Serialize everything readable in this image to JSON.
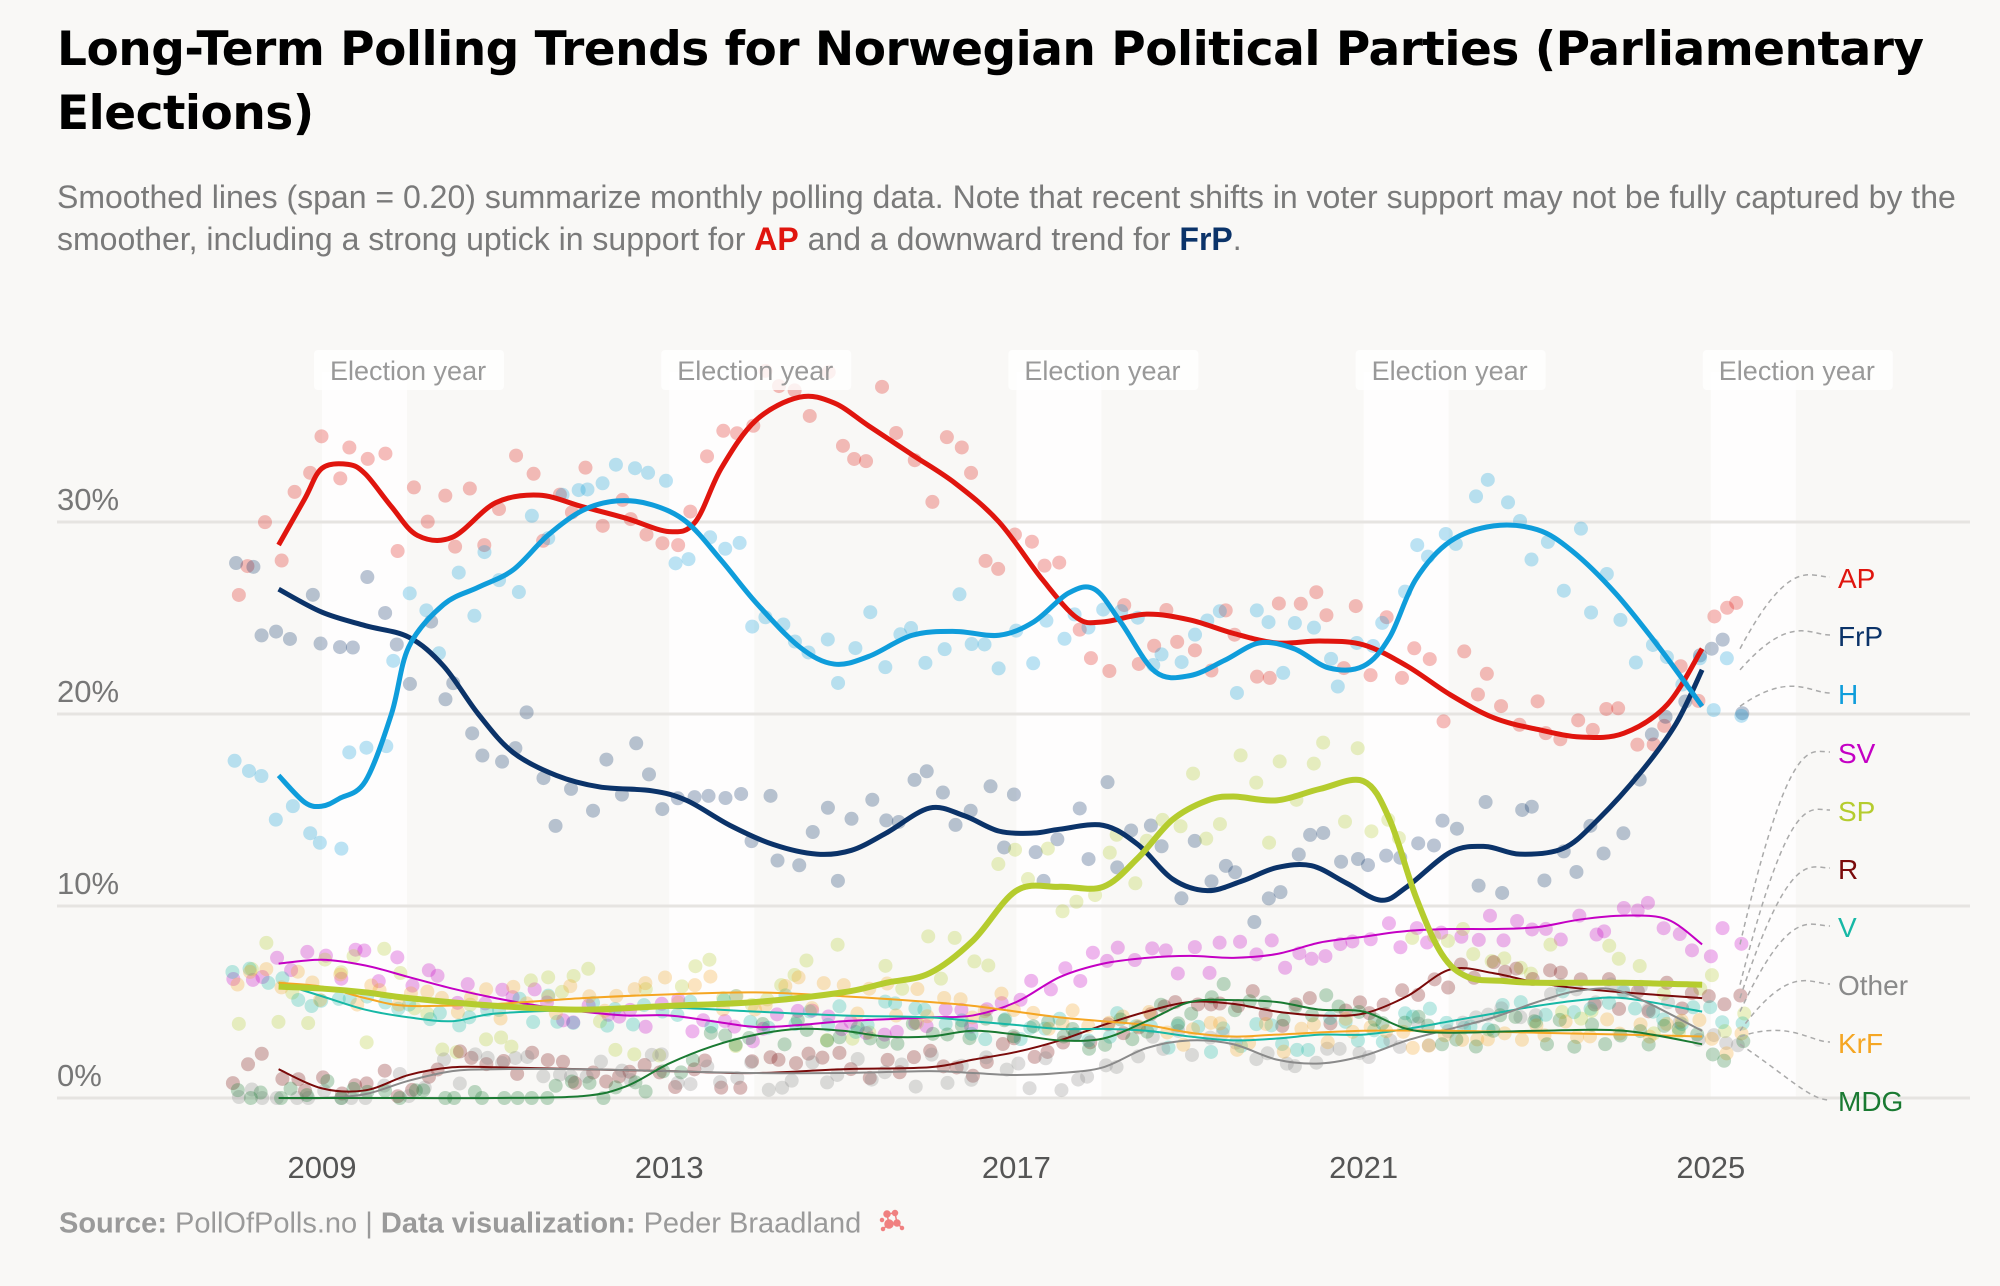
{
  "title": "Long-Term Polling Trends for Norwegian Political Parties (Parliamentary Elections)",
  "subtitle": {
    "part1": "Smoothed lines (span = 0.20) summarize monthly polling data. Note that recent shifts in voter support may not be fully captured by the smoother, including a strong uptick in support for ",
    "ap": "AP",
    "part2": " and a downward trend for ",
    "frp": "FrP",
    "part3": "."
  },
  "caption": {
    "source_label": "Source:",
    "source_value": "PollOfPolls.no",
    "separator": "|",
    "viz_label": "Data visualization:",
    "viz_value": "Peder Braadland",
    "logo_icon": "network-logo-icon"
  },
  "chart_data": {
    "type": "line",
    "title": "Long-Term Polling Trends for Norwegian Political Parties (Parliamentary Elections)",
    "xlabel": "",
    "ylabel": "",
    "xlim": [
      2007.8,
      2027.5
    ],
    "ylim": [
      0,
      38
    ],
    "x_ticks": [
      2009,
      2013,
      2017,
      2021,
      2025
    ],
    "y_ticks": [
      0,
      10,
      20,
      30
    ],
    "y_tick_labels": [
      "0%",
      "10%",
      "20%",
      "30%"
    ],
    "grid": "horizontal",
    "election_years": [
      2009,
      2013,
      2017,
      2021,
      2025
    ],
    "election_label": "Election year",
    "legend_placement": "right (direct labels)",
    "series": [
      {
        "name": "AP",
        "color": "#e0150e",
        "width": 5,
        "x": [
          2008.5,
          2008.8,
          2009.0,
          2009.3,
          2009.5,
          2009.8,
          2010.1,
          2010.5,
          2011.0,
          2011.5,
          2012.0,
          2012.5,
          2013.0,
          2013.3,
          2013.6,
          2014.0,
          2014.5,
          2014.9,
          2015.3,
          2015.8,
          2016.3,
          2016.8,
          2017.3,
          2017.7,
          2018.0,
          2018.5,
          2019.0,
          2019.5,
          2020.0,
          2020.5,
          2021.0,
          2021.5,
          2022.0,
          2022.5,
          2023.0,
          2023.5,
          2024.0,
          2024.5,
          2024.9
        ],
        "y": [
          28.8,
          31.2,
          32.8,
          33.0,
          32.5,
          30.8,
          29.3,
          29.2,
          31.0,
          31.4,
          30.8,
          30.2,
          29.5,
          30.0,
          32.8,
          35.3,
          36.5,
          36.2,
          35.0,
          33.5,
          32.0,
          30.0,
          27.0,
          25.0,
          24.8,
          25.2,
          24.9,
          24.2,
          23.7,
          23.8,
          23.6,
          22.5,
          21.0,
          19.8,
          19.2,
          18.8,
          19.0,
          20.5,
          23.4
        ]
      },
      {
        "name": "FrP",
        "color": "#0b3369",
        "width": 5,
        "x": [
          2008.5,
          2009.0,
          2009.5,
          2010.0,
          2010.4,
          2010.8,
          2011.2,
          2011.7,
          2012.2,
          2012.8,
          2013.2,
          2013.7,
          2014.2,
          2014.7,
          2015.1,
          2015.5,
          2016.0,
          2016.4,
          2016.8,
          2017.2,
          2017.5,
          2018.0,
          2018.4,
          2018.8,
          2019.2,
          2019.6,
          2020.0,
          2020.4,
          2020.8,
          2021.2,
          2021.5,
          2022.0,
          2022.4,
          2022.8,
          2023.3,
          2023.7,
          2024.2,
          2024.6,
          2024.9
        ],
        "y": [
          26.5,
          25.3,
          24.6,
          24.0,
          22.5,
          20.0,
          18.0,
          16.8,
          16.2,
          16.0,
          15.5,
          14.2,
          13.2,
          12.7,
          12.9,
          13.8,
          15.1,
          14.7,
          13.9,
          13.8,
          14.0,
          14.2,
          13.2,
          11.4,
          10.8,
          11.3,
          12.0,
          12.1,
          11.2,
          10.3,
          11.0,
          12.8,
          13.1,
          12.7,
          13.0,
          14.5,
          17.0,
          19.5,
          22.3
        ]
      },
      {
        "name": "H",
        "color": "#0f9ddb",
        "width": 5,
        "x": [
          2008.5,
          2008.8,
          2009.0,
          2009.2,
          2009.5,
          2009.8,
          2010.0,
          2010.4,
          2010.8,
          2011.2,
          2011.6,
          2012.0,
          2012.4,
          2012.8,
          2013.2,
          2013.6,
          2014.0,
          2014.5,
          2014.9,
          2015.3,
          2015.8,
          2016.3,
          2016.8,
          2017.2,
          2017.6,
          2017.9,
          2018.2,
          2018.6,
          2019.0,
          2019.4,
          2019.8,
          2020.2,
          2020.6,
          2021.0,
          2021.3,
          2021.6,
          2022.0,
          2022.5,
          2023.0,
          2023.4,
          2023.9,
          2024.4,
          2024.9
        ],
        "y": [
          16.8,
          15.4,
          15.2,
          15.6,
          16.5,
          20.0,
          23.5,
          25.7,
          26.6,
          27.5,
          29.3,
          30.6,
          31.1,
          30.9,
          30.0,
          28.0,
          25.8,
          23.5,
          22.6,
          23.0,
          24.1,
          24.3,
          24.1,
          24.8,
          26.3,
          26.5,
          24.8,
          22.2,
          22.0,
          22.8,
          23.7,
          23.4,
          22.4,
          22.5,
          24.0,
          27.0,
          29.0,
          29.8,
          29.6,
          28.5,
          26.3,
          23.5,
          20.4
        ]
      },
      {
        "name": "SV",
        "color": "#c400c4",
        "width": 2,
        "x": [
          2008.5,
          2009.0,
          2009.5,
          2010.0,
          2010.5,
          2011.0,
          2011.5,
          2012.0,
          2012.5,
          2013.0,
          2013.5,
          2014.0,
          2014.5,
          2015.0,
          2015.5,
          2016.0,
          2016.5,
          2017.0,
          2017.5,
          2018.0,
          2018.5,
          2019.0,
          2019.5,
          2020.0,
          2020.5,
          2021.0,
          2021.5,
          2022.0,
          2022.5,
          2023.0,
          2023.5,
          2024.0,
          2024.5,
          2024.9
        ],
        "y": [
          7.0,
          7.2,
          6.9,
          6.3,
          5.7,
          5.2,
          4.8,
          4.5,
          4.3,
          4.3,
          4.0,
          3.7,
          3.8,
          4.0,
          4.1,
          4.2,
          4.3,
          5.0,
          6.3,
          7.0,
          7.3,
          7.4,
          7.3,
          7.5,
          8.1,
          8.4,
          8.7,
          8.8,
          8.8,
          8.9,
          9.3,
          9.5,
          9.3,
          8.0
        ]
      },
      {
        "name": "SP",
        "color": "#b5cc2e",
        "width": 6,
        "x": [
          2008.5,
          2009.0,
          2009.5,
          2010.0,
          2011.0,
          2012.0,
          2013.0,
          2014.0,
          2015.0,
          2015.5,
          2016.0,
          2016.5,
          2017.0,
          2017.5,
          2018.0,
          2018.4,
          2018.8,
          2019.2,
          2019.5,
          2020.0,
          2020.5,
          2021.0,
          2021.3,
          2021.6,
          2021.9,
          2022.2,
          2022.6,
          2023.0,
          2024.0,
          2024.9
        ],
        "y": [
          5.8,
          5.7,
          5.5,
          5.2,
          4.8,
          4.6,
          4.8,
          5.0,
          5.5,
          6.0,
          6.5,
          8.2,
          10.8,
          11.0,
          11.0,
          12.5,
          14.5,
          15.5,
          15.7,
          15.5,
          16.1,
          16.5,
          14.5,
          10.5,
          7.5,
          6.3,
          6.1,
          6.0,
          6.0,
          5.9
        ]
      },
      {
        "name": "R",
        "color": "#7a0a0a",
        "width": 2,
        "x": [
          2008.5,
          2009.0,
          2009.5,
          2010.0,
          2010.5,
          2011.0,
          2012.0,
          2013.0,
          2014.0,
          2015.0,
          2016.0,
          2016.5,
          2017.0,
          2017.5,
          2018.0,
          2018.5,
          2019.0,
          2019.5,
          2020.0,
          2020.5,
          2021.0,
          2021.5,
          2022.0,
          2022.5,
          2023.0,
          2023.5,
          2024.0,
          2024.9
        ],
        "y": [
          1.5,
          0.5,
          0.4,
          1.2,
          1.6,
          1.6,
          1.5,
          1.4,
          1.3,
          1.5,
          1.6,
          2.0,
          2.4,
          3.0,
          3.8,
          4.5,
          5.0,
          4.9,
          4.5,
          4.3,
          4.4,
          5.3,
          6.7,
          6.5,
          6.0,
          5.7,
          5.5,
          5.2
        ]
      },
      {
        "name": "V",
        "color": "#17b8a6",
        "width": 2,
        "x": [
          2008.5,
          2009.0,
          2009.5,
          2010.0,
          2010.5,
          2011.0,
          2012.0,
          2013.0,
          2014.0,
          2015.0,
          2016.0,
          2016.5,
          2017.0,
          2017.5,
          2018.0,
          2018.5,
          2019.0,
          2019.5,
          2020.0,
          2020.5,
          2021.0,
          2021.5,
          2022.0,
          2022.5,
          2023.0,
          2023.5,
          2024.0,
          2024.9
        ],
        "y": [
          6.0,
          5.3,
          4.6,
          4.2,
          4.0,
          4.4,
          4.6,
          4.7,
          4.5,
          4.3,
          4.2,
          4.0,
          3.8,
          3.6,
          3.6,
          3.5,
          3.2,
          3.0,
          3.1,
          3.3,
          3.3,
          3.6,
          4.0,
          4.4,
          4.8,
          5.1,
          5.2,
          4.5
        ]
      },
      {
        "name": "Other",
        "color": "#8a8a8a",
        "width": 2,
        "x": [
          2008.5,
          2009.0,
          2009.5,
          2010.0,
          2010.5,
          2011.0,
          2012.0,
          2013.0,
          2014.0,
          2015.0,
          2016.0,
          2016.5,
          2017.0,
          2017.5,
          2018.0,
          2018.5,
          2019.0,
          2019.5,
          2020.0,
          2020.5,
          2021.0,
          2021.5,
          2022.0,
          2022.5,
          2023.0,
          2023.5,
          2024.0,
          2024.9
        ],
        "y": [
          0.0,
          0.0,
          0.2,
          0.9,
          1.4,
          1.5,
          1.5,
          1.4,
          1.3,
          1.3,
          1.4,
          1.3,
          1.2,
          1.3,
          1.6,
          2.6,
          3.0,
          2.8,
          2.0,
          1.8,
          2.2,
          3.0,
          3.6,
          4.2,
          5.0,
          5.6,
          5.5,
          3.5
        ]
      },
      {
        "name": "KrF",
        "color": "#f5a623",
        "width": 2,
        "x": [
          2008.5,
          2009.0,
          2009.5,
          2010.0,
          2011.0,
          2012.0,
          2013.0,
          2014.0,
          2015.0,
          2016.0,
          2016.5,
          2017.0,
          2017.5,
          2018.0,
          2018.5,
          2019.0,
          2019.5,
          2020.0,
          2021.0,
          2022.0,
          2023.0,
          2024.0,
          2024.9
        ],
        "y": [
          6.0,
          5.8,
          5.2,
          4.8,
          4.9,
          5.2,
          5.4,
          5.5,
          5.3,
          5.0,
          4.8,
          4.5,
          4.2,
          4.0,
          3.8,
          3.4,
          3.2,
          3.3,
          3.5,
          3.5,
          3.4,
          3.3,
          3.2
        ]
      },
      {
        "name": "MDG",
        "color": "#1a7a32",
        "width": 2,
        "x": [
          2008.5,
          2009.0,
          2010.0,
          2011.0,
          2012.0,
          2012.5,
          2013.0,
          2013.5,
          2014.0,
          2014.5,
          2015.0,
          2015.5,
          2016.0,
          2016.5,
          2017.0,
          2017.5,
          2018.0,
          2018.5,
          2019.0,
          2019.5,
          2020.0,
          2020.5,
          2021.0,
          2021.5,
          2022.0,
          2023.0,
          2024.0,
          2024.9
        ],
        "y": [
          0.0,
          0.0,
          0.0,
          0.0,
          0.1,
          0.6,
          1.8,
          2.7,
          3.3,
          3.6,
          3.5,
          3.2,
          3.2,
          3.5,
          3.3,
          3.0,
          3.1,
          4.0,
          5.0,
          5.1,
          5.0,
          4.6,
          4.5,
          3.6,
          3.4,
          3.5,
          3.5,
          2.8
        ]
      }
    ]
  }
}
